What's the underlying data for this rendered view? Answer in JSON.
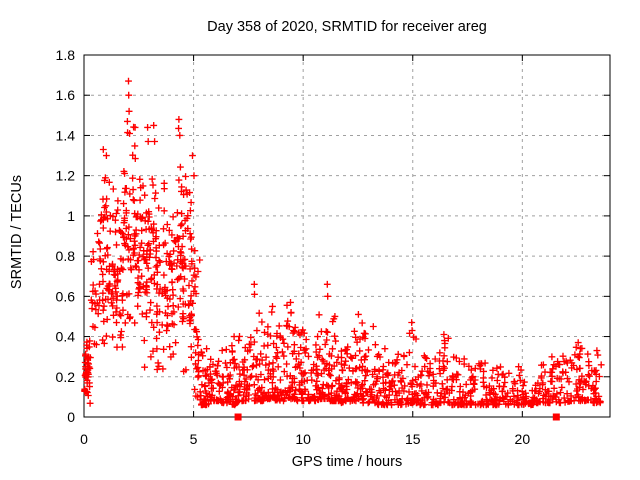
{
  "figure": {
    "background": "#ffffff"
  },
  "chart_data": {
    "type": "scatter",
    "title": "Day 358 of 2020, SRMTID for receiver areg",
    "xlabel": "GPS time / hours",
    "ylabel": "SRMTID / TECUs",
    "xlim": [
      0,
      24
    ],
    "ylim": [
      0,
      1.8
    ],
    "xticks": [
      "0",
      "5",
      "10",
      "15",
      "20"
    ],
    "yticks": [
      "0",
      "0.2",
      "0.4",
      "0.6",
      "0.8",
      "1",
      "1.2",
      "1.4",
      "1.6",
      "1.8"
    ],
    "grid": true,
    "legend": "none",
    "marker": {
      "shape": "plus",
      "color": "#ff0000",
      "size": 7
    },
    "axis_color": "#000000",
    "grid_color": "#a0a0a0",
    "seed": 1337,
    "scatter_bins": [
      [
        0.02,
        0.3,
        0.05,
        0.45,
        42,
        "tri"
      ],
      [
        0.3,
        0.6,
        0.25,
        0.92,
        16,
        "tri"
      ],
      [
        0.6,
        0.9,
        0.3,
        1.28,
        26,
        "tri"
      ],
      [
        0.9,
        1.2,
        0.3,
        1.34,
        30,
        "tri"
      ],
      [
        1.2,
        1.5,
        0.25,
        1.22,
        28,
        "tri"
      ],
      [
        1.5,
        1.8,
        0.2,
        1.26,
        28,
        "tri"
      ],
      [
        1.8,
        2.1,
        0.3,
        1.56,
        30,
        "tri"
      ],
      [
        2.1,
        2.4,
        0.35,
        1.48,
        28,
        "tri"
      ],
      [
        2.4,
        2.7,
        0.3,
        1.26,
        28,
        "tri"
      ],
      [
        2.7,
        3.0,
        0.2,
        1.4,
        30,
        "tri"
      ],
      [
        3.0,
        3.3,
        0.15,
        1.42,
        28,
        "tri"
      ],
      [
        3.3,
        3.6,
        0.15,
        1.12,
        26,
        "tri"
      ],
      [
        3.6,
        3.9,
        0.25,
        1.2,
        26,
        "tri"
      ],
      [
        3.9,
        4.2,
        0.2,
        1.06,
        26,
        "tri"
      ],
      [
        4.2,
        4.5,
        0.25,
        1.46,
        28,
        "tri"
      ],
      [
        4.5,
        4.8,
        0.2,
        1.32,
        28,
        "tri"
      ],
      [
        4.8,
        5.05,
        0.2,
        1.26,
        26,
        "tri"
      ],
      [
        5.05,
        5.3,
        0.1,
        0.85,
        24,
        "uni"
      ],
      [
        5.3,
        5.7,
        0.06,
        0.36,
        36,
        "low"
      ],
      [
        5.7,
        6.2,
        0.08,
        0.3,
        36,
        "low"
      ],
      [
        6.2,
        6.7,
        0.07,
        0.34,
        36,
        "low"
      ],
      [
        6.7,
        7.2,
        0.06,
        0.42,
        36,
        "low"
      ],
      [
        7.2,
        7.7,
        0.08,
        0.48,
        36,
        "low"
      ],
      [
        7.7,
        8.2,
        0.08,
        0.52,
        40,
        "low"
      ],
      [
        8.2,
        8.7,
        0.09,
        0.56,
        40,
        "low"
      ],
      [
        8.7,
        9.2,
        0.08,
        0.46,
        38,
        "low"
      ],
      [
        9.2,
        9.7,
        0.09,
        0.58,
        40,
        "low"
      ],
      [
        9.7,
        10.2,
        0.08,
        0.44,
        38,
        "low"
      ],
      [
        10.2,
        10.7,
        0.08,
        0.42,
        38,
        "low"
      ],
      [
        10.7,
        11.2,
        0.09,
        0.52,
        40,
        "low"
      ],
      [
        11.2,
        11.7,
        0.08,
        0.5,
        40,
        "low"
      ],
      [
        11.7,
        12.2,
        0.07,
        0.4,
        38,
        "low"
      ],
      [
        12.2,
        12.7,
        0.08,
        0.5,
        38,
        "low"
      ],
      [
        12.7,
        13.3,
        0.07,
        0.44,
        40,
        "low"
      ],
      [
        13.3,
        14.0,
        0.06,
        0.34,
        42,
        "low"
      ],
      [
        14.0,
        14.8,
        0.06,
        0.32,
        44,
        "low"
      ],
      [
        14.8,
        15.2,
        0.07,
        0.44,
        26,
        "low"
      ],
      [
        15.2,
        16.2,
        0.06,
        0.31,
        50,
        "low"
      ],
      [
        16.2,
        16.7,
        0.07,
        0.4,
        30,
        "low"
      ],
      [
        16.7,
        17.5,
        0.06,
        0.3,
        44,
        "low"
      ],
      [
        17.5,
        18.5,
        0.06,
        0.27,
        50,
        "low"
      ],
      [
        18.5,
        19.5,
        0.06,
        0.26,
        50,
        "low"
      ],
      [
        19.5,
        20.5,
        0.06,
        0.25,
        50,
        "low"
      ],
      [
        20.5,
        21.3,
        0.07,
        0.26,
        42,
        "low"
      ],
      [
        21.3,
        22.2,
        0.07,
        0.31,
        46,
        "low"
      ],
      [
        22.2,
        22.9,
        0.08,
        0.37,
        38,
        "low"
      ],
      [
        22.9,
        23.6,
        0.07,
        0.32,
        44,
        "low"
      ]
    ],
    "peak_points": [
      [
        2.03,
        1.67
      ],
      [
        2.04,
        1.6
      ],
      [
        2.06,
        1.52
      ],
      [
        1.98,
        1.47
      ],
      [
        0.88,
        1.33
      ],
      [
        1.02,
        1.3
      ],
      [
        2.33,
        1.44
      ],
      [
        2.9,
        1.44
      ],
      [
        2.93,
        1.37
      ],
      [
        3.18,
        1.45
      ],
      [
        3.22,
        1.37
      ],
      [
        4.33,
        1.48
      ],
      [
        4.37,
        1.4
      ],
      [
        4.95,
        1.3
      ],
      [
        5.02,
        1.2
      ],
      [
        6.85,
        0.4
      ],
      [
        7.77,
        0.66
      ],
      [
        7.78,
        0.61
      ],
      [
        8.6,
        0.55
      ],
      [
        9.42,
        0.57
      ],
      [
        9.45,
        0.52
      ],
      [
        11.1,
        0.66
      ],
      [
        11.12,
        0.6
      ],
      [
        11.45,
        0.5
      ],
      [
        12.52,
        0.51
      ],
      [
        13.2,
        0.45
      ],
      [
        14.95,
        0.47
      ],
      [
        14.97,
        0.43
      ],
      [
        16.42,
        0.41
      ],
      [
        16.45,
        0.38
      ],
      [
        22.55,
        0.37
      ],
      [
        22.65,
        0.34
      ],
      [
        23.4,
        0.33
      ]
    ],
    "baseline_squares": {
      "y": 0,
      "x": [
        7.03,
        21.55
      ],
      "color": "#ff0000",
      "size": 7
    }
  }
}
